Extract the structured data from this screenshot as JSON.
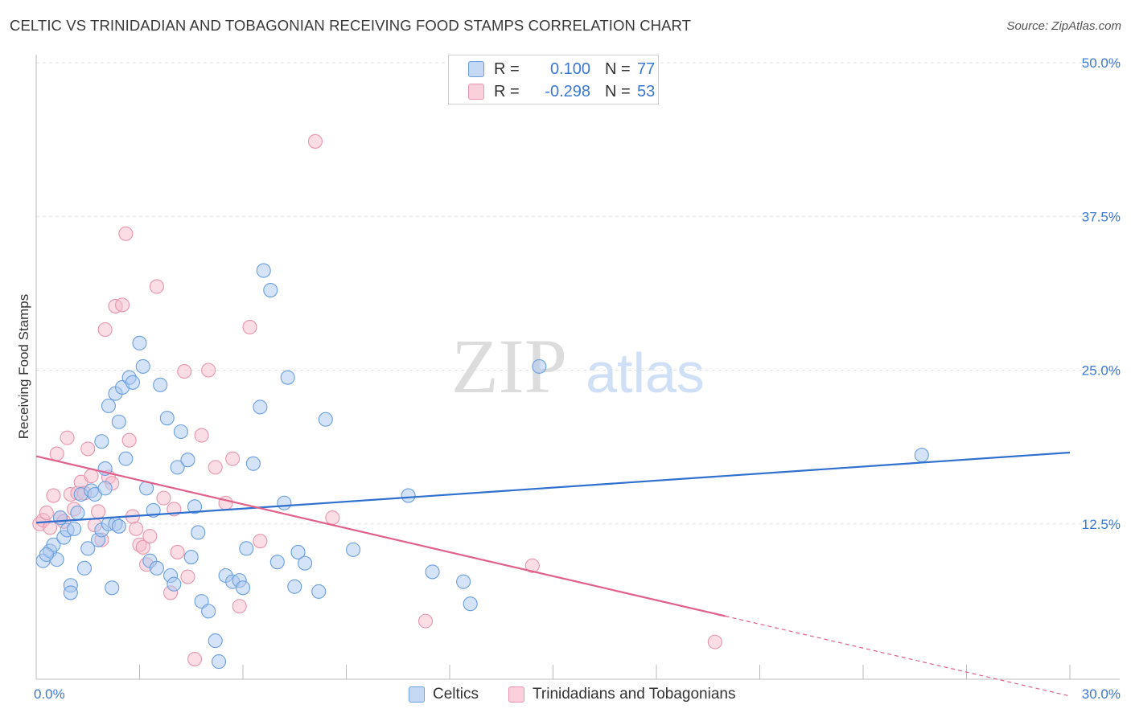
{
  "header": {
    "title": "CELTIC VS TRINIDADIAN AND TOBAGONIAN RECEIVING FOOD STAMPS CORRELATION CHART",
    "source": "Source: ZipAtlas.com"
  },
  "legend": {
    "rows": [
      {
        "r_label": "R =",
        "r_value": "0.100",
        "n_label": "N =",
        "n_value": "77"
      },
      {
        "r_label": "R =",
        "r_value": "-0.298",
        "n_label": "N =",
        "n_value": "53"
      }
    ]
  },
  "watermark": {
    "zip": "ZIP",
    "atlas": "atlas"
  },
  "colors": {
    "blue_fill": "#a9c8f0",
    "blue_stroke": "#6a9fe0",
    "blue_line": "#2f6fce",
    "pink_fill": "#f6bccb",
    "pink_stroke": "#e895ad",
    "pink_line": "#e0608a",
    "axis_text": "#3b78d4"
  },
  "chart_data": {
    "type": "scatter",
    "title": "CELTIC VS TRINIDADIAN AND TOBAGONIAN RECEIVING FOOD STAMPS CORRELATION CHART",
    "xlabel": "",
    "ylabel": "Receiving Food Stamps",
    "xlim": [
      0,
      30
    ],
    "ylim": [
      0,
      50
    ],
    "x_tick_labels": [
      "0.0%",
      "30.0%"
    ],
    "y_ticks": [
      12.5,
      25.0,
      37.5,
      50.0
    ],
    "y_tick_labels": [
      "12.5%",
      "25.0%",
      "37.5%",
      "50.0%"
    ],
    "grid": true,
    "series": [
      {
        "name": "Celtics",
        "color": "#6a9fe0",
        "trend": {
          "x": [
            0,
            30
          ],
          "y": [
            12.6,
            18.3
          ]
        },
        "points": [
          [
            0.2,
            9.5
          ],
          [
            0.4,
            10.3
          ],
          [
            0.5,
            10.8
          ],
          [
            0.6,
            9.6
          ],
          [
            0.7,
            13.0
          ],
          [
            0.8,
            11.4
          ],
          [
            0.9,
            12.0
          ],
          [
            1.0,
            7.5
          ],
          [
            1.1,
            12.1
          ],
          [
            1.0,
            6.9
          ],
          [
            1.2,
            13.4
          ],
          [
            1.3,
            14.9
          ],
          [
            1.4,
            8.9
          ],
          [
            1.5,
            10.5
          ],
          [
            1.6,
            15.2
          ],
          [
            1.7,
            14.9
          ],
          [
            1.8,
            11.2
          ],
          [
            1.9,
            12.0
          ],
          [
            2.0,
            15.4
          ],
          [
            2.1,
            12.5
          ],
          [
            2.2,
            7.3
          ],
          [
            2.3,
            12.5
          ],
          [
            2.4,
            12.3
          ],
          [
            2.0,
            17.0
          ],
          [
            1.9,
            19.2
          ],
          [
            2.1,
            22.1
          ],
          [
            2.3,
            23.1
          ],
          [
            2.4,
            20.8
          ],
          [
            2.5,
            23.6
          ],
          [
            2.6,
            17.8
          ],
          [
            2.7,
            24.4
          ],
          [
            2.8,
            24.0
          ],
          [
            3.0,
            27.2
          ],
          [
            3.1,
            25.3
          ],
          [
            3.2,
            15.4
          ],
          [
            3.3,
            9.5
          ],
          [
            3.4,
            13.6
          ],
          [
            3.5,
            8.9
          ],
          [
            3.6,
            23.8
          ],
          [
            3.8,
            21.1
          ],
          [
            3.9,
            8.3
          ],
          [
            4.0,
            7.6
          ],
          [
            4.1,
            17.1
          ],
          [
            4.2,
            20.0
          ],
          [
            4.4,
            17.7
          ],
          [
            4.5,
            9.8
          ],
          [
            4.6,
            13.9
          ],
          [
            4.7,
            11.8
          ],
          [
            4.8,
            6.2
          ],
          [
            5.0,
            5.4
          ],
          [
            5.2,
            3.0
          ],
          [
            5.3,
            1.3
          ],
          [
            5.5,
            8.3
          ],
          [
            5.7,
            7.8
          ],
          [
            5.9,
            7.9
          ],
          [
            6.0,
            7.3
          ],
          [
            6.1,
            10.5
          ],
          [
            6.3,
            17.4
          ],
          [
            6.5,
            22.0
          ],
          [
            6.6,
            33.1
          ],
          [
            6.8,
            31.5
          ],
          [
            7.0,
            9.4
          ],
          [
            7.2,
            14.2
          ],
          [
            7.3,
            24.4
          ],
          [
            7.5,
            7.4
          ],
          [
            7.6,
            10.2
          ],
          [
            7.8,
            9.3
          ],
          [
            8.2,
            7.0
          ],
          [
            8.4,
            21.0
          ],
          [
            9.2,
            10.4
          ],
          [
            10.8,
            14.8
          ],
          [
            11.5,
            8.6
          ],
          [
            12.4,
            7.8
          ],
          [
            12.6,
            6.0
          ],
          [
            14.6,
            25.3
          ],
          [
            25.7,
            18.1
          ],
          [
            0.3,
            10.0
          ]
        ]
      },
      {
        "name": "Trinidadians and Tobagonians",
        "color": "#e895ad",
        "trend": {
          "x": [
            0,
            20
          ],
          "y": [
            18.0,
            5.0
          ]
        },
        "trend_dashed": {
          "x": [
            20,
            30
          ],
          "y": [
            5.0,
            -1.5
          ]
        },
        "points": [
          [
            0.1,
            12.5
          ],
          [
            0.2,
            12.8
          ],
          [
            0.3,
            13.4
          ],
          [
            0.4,
            12.2
          ],
          [
            0.5,
            14.8
          ],
          [
            0.6,
            18.2
          ],
          [
            0.7,
            13.0
          ],
          [
            0.8,
            12.7
          ],
          [
            0.9,
            19.5
          ],
          [
            1.0,
            14.9
          ],
          [
            1.1,
            13.7
          ],
          [
            1.2,
            15.0
          ],
          [
            1.3,
            15.9
          ],
          [
            1.4,
            15.0
          ],
          [
            1.5,
            18.6
          ],
          [
            1.6,
            16.4
          ],
          [
            1.7,
            12.4
          ],
          [
            1.8,
            13.5
          ],
          [
            1.9,
            11.2
          ],
          [
            2.0,
            28.3
          ],
          [
            2.1,
            16.3
          ],
          [
            2.2,
            15.8
          ],
          [
            2.3,
            30.2
          ],
          [
            2.5,
            30.3
          ],
          [
            2.6,
            36.1
          ],
          [
            2.7,
            19.3
          ],
          [
            2.8,
            13.1
          ],
          [
            2.9,
            12.1
          ],
          [
            3.0,
            10.8
          ],
          [
            3.1,
            10.6
          ],
          [
            3.2,
            9.2
          ],
          [
            3.3,
            11.5
          ],
          [
            3.5,
            31.8
          ],
          [
            3.7,
            14.6
          ],
          [
            3.9,
            6.9
          ],
          [
            4.0,
            13.7
          ],
          [
            4.1,
            10.2
          ],
          [
            4.3,
            24.9
          ],
          [
            4.4,
            8.2
          ],
          [
            4.6,
            1.5
          ],
          [
            4.8,
            19.7
          ],
          [
            5.0,
            25.0
          ],
          [
            5.2,
            17.1
          ],
          [
            5.5,
            14.2
          ],
          [
            5.7,
            17.8
          ],
          [
            5.9,
            5.8
          ],
          [
            6.2,
            28.5
          ],
          [
            6.5,
            11.1
          ],
          [
            8.1,
            43.6
          ],
          [
            8.6,
            13.0
          ],
          [
            11.3,
            4.6
          ],
          [
            14.4,
            9.1
          ],
          [
            19.7,
            2.9
          ]
        ]
      }
    ]
  },
  "bottom_legend": {
    "items": [
      {
        "label": "Celtics"
      },
      {
        "label": "Trinidadians and Tobagonians"
      }
    ]
  }
}
